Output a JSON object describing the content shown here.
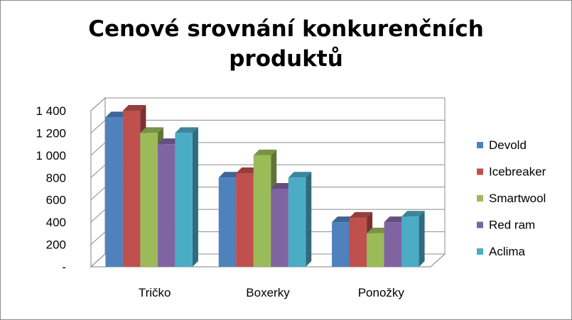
{
  "chart_data": {
    "type": "bar",
    "title_line1": "Cenové srovnání konkurenčních",
    "title_line2": "produktů",
    "xlabel": "",
    "ylabel": "",
    "categories": [
      "Tričko",
      "Boxerky",
      "Ponožky"
    ],
    "series": [
      {
        "name": "Devold",
        "color": "#4F81BD",
        "values": [
          1340,
          800,
          400
        ]
      },
      {
        "name": "Icebreaker",
        "color": "#C0504D",
        "values": [
          1400,
          840,
          440
        ]
      },
      {
        "name": "Smartwool",
        "color": "#9BBB59",
        "values": [
          1200,
          1000,
          300
        ]
      },
      {
        "name": "Red ram",
        "color": "#8064A2",
        "values": [
          1100,
          700,
          400
        ]
      },
      {
        "name": "Aclima",
        "color": "#4BACC6",
        "values": [
          1200,
          800,
          450
        ]
      }
    ],
    "ylim": [
      0,
      1400
    ],
    "yticks": [
      {
        "value": 0,
        "label": "-"
      },
      {
        "value": 200,
        "label": "200"
      },
      {
        "value": 400,
        "label": "400"
      },
      {
        "value": 600,
        "label": "600"
      },
      {
        "value": 800,
        "label": "800"
      },
      {
        "value": 1000,
        "label": "1 000"
      },
      {
        "value": 1200,
        "label": "1 200"
      },
      {
        "value": 1400,
        "label": "1 400"
      }
    ],
    "grid": true,
    "legend_position": "right",
    "style": "3d-clustered-column"
  }
}
